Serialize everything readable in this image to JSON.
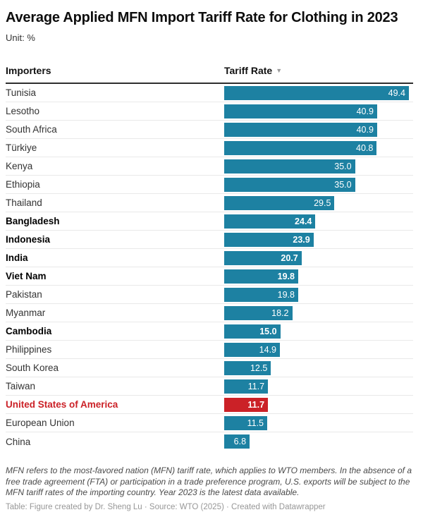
{
  "header": {
    "title": "Average Applied MFN Import Tariff Rate for Clothing in 2023",
    "unit_label": "Unit: %"
  },
  "table": {
    "importers_header": "Importers",
    "tariff_rate_header": "Tariff Rate",
    "sort_descending_icon": "▼"
  },
  "theme": {
    "bar_color": "#1d81a2",
    "highlight_color": "#cb2127",
    "header_rule_color": "#2e2e2e",
    "row_divider_color": "#e9e9e9"
  },
  "chart_data": {
    "type": "bar",
    "orientation": "horizontal",
    "title": "Average Applied MFN Import Tariff Rate for Clothing in 2023",
    "unit": "%",
    "xlabel": "Tariff Rate",
    "ylabel": "Importers",
    "xlim": [
      0,
      49.4
    ],
    "sort": "descending",
    "grid": false,
    "legend": false,
    "value_labels": "inside-end",
    "categories": [
      "Tunisia",
      "Lesotho",
      "South Africa",
      "Türkiye",
      "Kenya",
      "Ethiopia",
      "Thailand",
      "Bangladesh",
      "Indonesia",
      "India",
      "Viet Nam",
      "Pakistan",
      "Myanmar",
      "Cambodia",
      "Philippines",
      "South Korea",
      "Taiwan",
      "United States of America",
      "European Union",
      "China"
    ],
    "values": [
      49.4,
      40.9,
      40.9,
      40.8,
      35.0,
      35.0,
      29.5,
      24.4,
      23.9,
      20.7,
      19.8,
      19.8,
      18.2,
      15.0,
      14.9,
      12.5,
      11.7,
      11.7,
      11.5,
      6.8
    ],
    "highlight_category": "United States of America",
    "bold_categories": [
      "Bangladesh",
      "Indonesia",
      "India",
      "Viet Nam",
      "Cambodia",
      "United States of America"
    ]
  },
  "rows": [
    {
      "label": "Tunisia",
      "value": "49.4",
      "bold": false,
      "highlight": false
    },
    {
      "label": "Lesotho",
      "value": "40.9",
      "bold": false,
      "highlight": false
    },
    {
      "label": "South Africa",
      "value": "40.9",
      "bold": false,
      "highlight": false
    },
    {
      "label": "Türkiye",
      "value": "40.8",
      "bold": false,
      "highlight": false
    },
    {
      "label": "Kenya",
      "value": "35.0",
      "bold": false,
      "highlight": false
    },
    {
      "label": "Ethiopia",
      "value": "35.0",
      "bold": false,
      "highlight": false
    },
    {
      "label": "Thailand",
      "value": "29.5",
      "bold": false,
      "highlight": false
    },
    {
      "label": "Bangladesh",
      "value": "24.4",
      "bold": true,
      "highlight": false
    },
    {
      "label": "Indonesia",
      "value": "23.9",
      "bold": true,
      "highlight": false
    },
    {
      "label": "India",
      "value": "20.7",
      "bold": true,
      "highlight": false
    },
    {
      "label": "Viet Nam",
      "value": "19.8",
      "bold": true,
      "highlight": false
    },
    {
      "label": "Pakistan",
      "value": "19.8",
      "bold": false,
      "highlight": false
    },
    {
      "label": "Myanmar",
      "value": "18.2",
      "bold": false,
      "highlight": false
    },
    {
      "label": "Cambodia",
      "value": "15.0",
      "bold": true,
      "highlight": false
    },
    {
      "label": "Philippines",
      "value": "14.9",
      "bold": false,
      "highlight": false
    },
    {
      "label": "South Korea",
      "value": "12.5",
      "bold": false,
      "highlight": false
    },
    {
      "label": "Taiwan",
      "value": "11.7",
      "bold": false,
      "highlight": false
    },
    {
      "label": "United States of America",
      "value": "11.7",
      "bold": true,
      "highlight": true
    },
    {
      "label": "European Union",
      "value": "11.5",
      "bold": false,
      "highlight": false
    },
    {
      "label": "China",
      "value": "6.8",
      "bold": false,
      "highlight": false
    }
  ],
  "footer": {
    "note": "MFN refers to the most-favored nation (MFN) tariff rate, which applies to WTO members. In the absence of a free trade agreement (FTA) or participation in a trade preference program, U.S. exports will be subject to the MFN tariff rates of the importing country. Year 2023 is the latest data available.",
    "attribution": "Table: Figure created by Dr. Sheng Lu · Source: WTO (2025) · Created with Datawrapper"
  }
}
